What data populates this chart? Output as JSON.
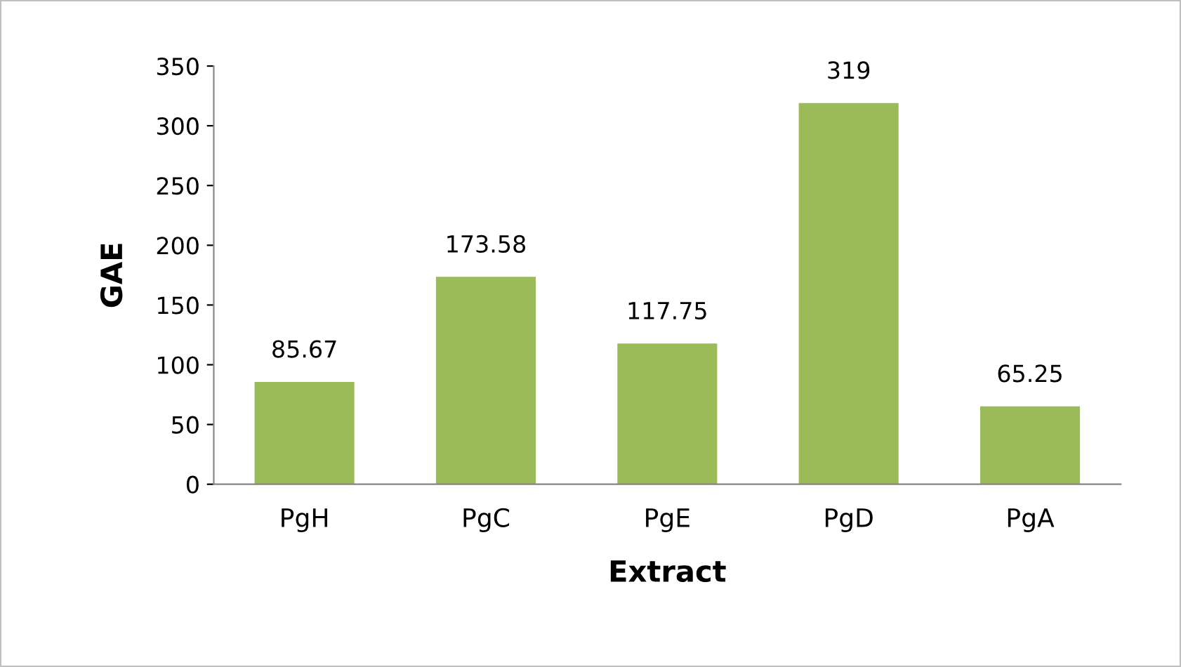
{
  "chart_data": {
    "type": "bar",
    "xlabel": "Extract",
    "ylabel": "GAE",
    "categories": [
      "PgH",
      "PgC",
      "PgE",
      "PgD",
      "PgA"
    ],
    "values": [
      85.67,
      173.58,
      117.75,
      319,
      65.25
    ],
    "color": "#9bbb59",
    "ylim": [
      0,
      350
    ],
    "yticks": [
      0,
      50,
      100,
      150,
      200,
      250,
      300,
      350
    ],
    "data_labels": true,
    "grid": false,
    "legend": false
  }
}
